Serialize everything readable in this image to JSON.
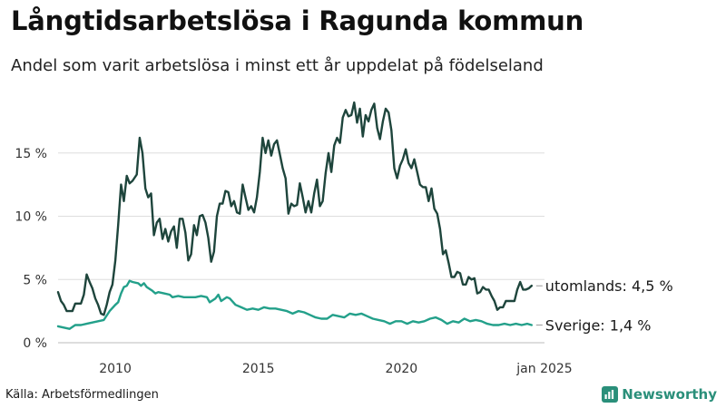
{
  "title": "Långtidsarbetslösa i Ragunda kommun",
  "subtitle": "Andel som varit arbetslösa i minst ett år uppdelat på födelseland",
  "source": "Källa: Arbetsförmedlingen",
  "logo_text": "Newsworthy",
  "colors": {
    "utomlands": "#1e453c",
    "sverige": "#23a08a",
    "grid": "#dddddd",
    "logo": "#2a8f7a"
  },
  "chart_data": {
    "type": "line",
    "title": "Långtidsarbetslösa i Ragunda kommun",
    "subtitle": "Andel som varit arbetslösa i minst ett år uppdelat på födelseland",
    "xlabel": "",
    "ylabel": "",
    "xlim": [
      2008.0,
      2025.0
    ],
    "ylim": [
      0,
      19.5
    ],
    "grid": true,
    "legend": "end-of-line labels",
    "x_ticks": [
      {
        "x": 2010,
        "label": "2010"
      },
      {
        "x": 2015,
        "label": "2015"
      },
      {
        "x": 2020,
        "label": "2020"
      },
      {
        "x": 2025,
        "label": "jan 2025"
      }
    ],
    "y_ticks": [
      {
        "y": 0,
        "label": "0 %"
      },
      {
        "y": 5,
        "label": "5 %"
      },
      {
        "y": 10,
        "label": "10 %"
      },
      {
        "y": 15,
        "label": "15 %"
      }
    ],
    "series": [
      {
        "name": "utomlands",
        "end_label": "utomlands: 4,5 %",
        "color": "#1e453c",
        "points": [
          [
            2008.0,
            4.0
          ],
          [
            2008.1,
            3.3
          ],
          [
            2008.2,
            3.0
          ],
          [
            2008.3,
            2.5
          ],
          [
            2008.5,
            2.5
          ],
          [
            2008.6,
            3.1
          ],
          [
            2008.8,
            3.1
          ],
          [
            2008.9,
            3.8
          ],
          [
            2009.0,
            5.4
          ],
          [
            2009.1,
            4.8
          ],
          [
            2009.2,
            4.3
          ],
          [
            2009.3,
            3.5
          ],
          [
            2009.4,
            3.0
          ],
          [
            2009.5,
            2.3
          ],
          [
            2009.6,
            2.2
          ],
          [
            2009.7,
            3.0
          ],
          [
            2009.8,
            4.0
          ],
          [
            2009.9,
            4.6
          ],
          [
            2010.0,
            6.5
          ],
          [
            2010.1,
            9.3
          ],
          [
            2010.2,
            12.5
          ],
          [
            2010.3,
            11.2
          ],
          [
            2010.4,
            13.2
          ],
          [
            2010.5,
            12.6
          ],
          [
            2010.6,
            12.8
          ],
          [
            2010.75,
            13.3
          ],
          [
            2010.85,
            16.2
          ],
          [
            2010.95,
            15.0
          ],
          [
            2011.05,
            12.2
          ],
          [
            2011.15,
            11.5
          ],
          [
            2011.25,
            11.8
          ],
          [
            2011.35,
            8.5
          ],
          [
            2011.45,
            9.5
          ],
          [
            2011.55,
            9.8
          ],
          [
            2011.65,
            8.2
          ],
          [
            2011.75,
            9.0
          ],
          [
            2011.85,
            8.0
          ],
          [
            2011.95,
            8.8
          ],
          [
            2012.05,
            9.2
          ],
          [
            2012.15,
            7.5
          ],
          [
            2012.25,
            9.8
          ],
          [
            2012.35,
            9.8
          ],
          [
            2012.45,
            8.7
          ],
          [
            2012.55,
            6.5
          ],
          [
            2012.65,
            7.0
          ],
          [
            2012.75,
            9.3
          ],
          [
            2012.85,
            8.5
          ],
          [
            2012.95,
            10.0
          ],
          [
            2013.05,
            10.1
          ],
          [
            2013.15,
            9.5
          ],
          [
            2013.25,
            8.3
          ],
          [
            2013.35,
            6.4
          ],
          [
            2013.45,
            7.2
          ],
          [
            2013.55,
            10.0
          ],
          [
            2013.65,
            11.0
          ],
          [
            2013.75,
            11.0
          ],
          [
            2013.85,
            12.0
          ],
          [
            2013.95,
            11.9
          ],
          [
            2014.05,
            10.8
          ],
          [
            2014.15,
            11.2
          ],
          [
            2014.25,
            10.3
          ],
          [
            2014.35,
            10.2
          ],
          [
            2014.45,
            12.5
          ],
          [
            2014.55,
            11.5
          ],
          [
            2014.65,
            10.5
          ],
          [
            2014.75,
            10.8
          ],
          [
            2014.85,
            10.3
          ],
          [
            2014.95,
            11.5
          ],
          [
            2015.05,
            13.5
          ],
          [
            2015.15,
            16.2
          ],
          [
            2015.25,
            15.0
          ],
          [
            2015.35,
            16.0
          ],
          [
            2015.45,
            14.8
          ],
          [
            2015.55,
            15.7
          ],
          [
            2015.65,
            16.0
          ],
          [
            2015.75,
            14.9
          ],
          [
            2015.85,
            13.8
          ],
          [
            2015.95,
            13.0
          ],
          [
            2016.05,
            10.2
          ],
          [
            2016.15,
            11.0
          ],
          [
            2016.25,
            10.8
          ],
          [
            2016.35,
            10.9
          ],
          [
            2016.45,
            12.6
          ],
          [
            2016.55,
            11.5
          ],
          [
            2016.65,
            10.3
          ],
          [
            2016.75,
            11.2
          ],
          [
            2016.85,
            10.3
          ],
          [
            2016.95,
            11.8
          ],
          [
            2017.05,
            12.9
          ],
          [
            2017.15,
            10.8
          ],
          [
            2017.25,
            11.2
          ],
          [
            2017.35,
            13.4
          ],
          [
            2017.45,
            15.0
          ],
          [
            2017.55,
            13.5
          ],
          [
            2017.65,
            15.6
          ],
          [
            2017.75,
            16.2
          ],
          [
            2017.85,
            15.8
          ],
          [
            2017.95,
            17.8
          ],
          [
            2018.05,
            18.4
          ],
          [
            2018.15,
            17.9
          ],
          [
            2018.25,
            18.0
          ],
          [
            2018.35,
            19.0
          ],
          [
            2018.45,
            17.4
          ],
          [
            2018.55,
            18.5
          ],
          [
            2018.65,
            16.3
          ],
          [
            2018.75,
            18.0
          ],
          [
            2018.85,
            17.5
          ],
          [
            2018.95,
            18.4
          ],
          [
            2019.05,
            18.9
          ],
          [
            2019.15,
            17.0
          ],
          [
            2019.25,
            16.1
          ],
          [
            2019.35,
            17.5
          ],
          [
            2019.45,
            18.5
          ],
          [
            2019.55,
            18.2
          ],
          [
            2019.65,
            16.8
          ],
          [
            2019.75,
            13.8
          ],
          [
            2019.85,
            13.0
          ],
          [
            2019.95,
            14.0
          ],
          [
            2020.05,
            14.5
          ],
          [
            2020.15,
            15.3
          ],
          [
            2020.25,
            14.2
          ],
          [
            2020.35,
            13.8
          ],
          [
            2020.45,
            14.5
          ],
          [
            2020.55,
            13.5
          ],
          [
            2020.65,
            12.5
          ],
          [
            2020.75,
            12.3
          ],
          [
            2020.85,
            12.3
          ],
          [
            2020.95,
            11.2
          ],
          [
            2021.05,
            12.2
          ],
          [
            2021.15,
            10.6
          ],
          [
            2021.25,
            10.2
          ],
          [
            2021.35,
            9.0
          ],
          [
            2021.45,
            7.0
          ],
          [
            2021.55,
            7.3
          ],
          [
            2021.65,
            6.3
          ],
          [
            2021.75,
            5.2
          ],
          [
            2021.85,
            5.2
          ],
          [
            2021.95,
            5.6
          ],
          [
            2022.05,
            5.5
          ],
          [
            2022.15,
            4.6
          ],
          [
            2022.25,
            4.6
          ],
          [
            2022.35,
            5.2
          ],
          [
            2022.45,
            5.0
          ],
          [
            2022.55,
            5.1
          ],
          [
            2022.65,
            3.9
          ],
          [
            2022.75,
            4.0
          ],
          [
            2022.85,
            4.4
          ],
          [
            2022.95,
            4.2
          ],
          [
            2023.05,
            4.2
          ],
          [
            2023.15,
            3.7
          ],
          [
            2023.25,
            3.3
          ],
          [
            2023.35,
            2.6
          ],
          [
            2023.45,
            2.8
          ],
          [
            2023.55,
            2.8
          ],
          [
            2023.65,
            3.3
          ],
          [
            2023.75,
            3.3
          ],
          [
            2023.85,
            3.3
          ],
          [
            2023.95,
            3.3
          ],
          [
            2024.05,
            4.2
          ],
          [
            2024.15,
            4.8
          ],
          [
            2024.25,
            4.2
          ],
          [
            2024.35,
            4.2
          ],
          [
            2024.45,
            4.3
          ],
          [
            2024.55,
            4.5
          ]
        ]
      },
      {
        "name": "Sverige",
        "end_label": "Sverige: 1,4 %",
        "color": "#23a08a",
        "points": [
          [
            2008.0,
            1.3
          ],
          [
            2008.2,
            1.2
          ],
          [
            2008.4,
            1.1
          ],
          [
            2008.6,
            1.4
          ],
          [
            2008.8,
            1.4
          ],
          [
            2009.0,
            1.5
          ],
          [
            2009.2,
            1.6
          ],
          [
            2009.4,
            1.7
          ],
          [
            2009.6,
            1.8
          ],
          [
            2009.8,
            2.5
          ],
          [
            2010.0,
            3.0
          ],
          [
            2010.1,
            3.2
          ],
          [
            2010.2,
            3.9
          ],
          [
            2010.3,
            4.4
          ],
          [
            2010.4,
            4.5
          ],
          [
            2010.5,
            4.9
          ],
          [
            2010.6,
            4.8
          ],
          [
            2010.8,
            4.7
          ],
          [
            2010.9,
            4.5
          ],
          [
            2011.0,
            4.7
          ],
          [
            2011.1,
            4.4
          ],
          [
            2011.3,
            4.1
          ],
          [
            2011.4,
            3.9
          ],
          [
            2011.5,
            4.0
          ],
          [
            2011.7,
            3.9
          ],
          [
            2011.9,
            3.8
          ],
          [
            2012.0,
            3.6
          ],
          [
            2012.2,
            3.7
          ],
          [
            2012.4,
            3.6
          ],
          [
            2012.6,
            3.6
          ],
          [
            2012.8,
            3.6
          ],
          [
            2013.0,
            3.7
          ],
          [
            2013.2,
            3.6
          ],
          [
            2013.3,
            3.2
          ],
          [
            2013.5,
            3.5
          ],
          [
            2013.6,
            3.8
          ],
          [
            2013.7,
            3.3
          ],
          [
            2013.9,
            3.6
          ],
          [
            2014.0,
            3.5
          ],
          [
            2014.2,
            3.0
          ],
          [
            2014.4,
            2.8
          ],
          [
            2014.6,
            2.6
          ],
          [
            2014.8,
            2.7
          ],
          [
            2015.0,
            2.6
          ],
          [
            2015.2,
            2.8
          ],
          [
            2015.4,
            2.7
          ],
          [
            2015.6,
            2.7
          ],
          [
            2015.8,
            2.6
          ],
          [
            2016.0,
            2.5
          ],
          [
            2016.2,
            2.3
          ],
          [
            2016.4,
            2.5
          ],
          [
            2016.6,
            2.4
          ],
          [
            2016.8,
            2.2
          ],
          [
            2017.0,
            2.0
          ],
          [
            2017.2,
            1.9
          ],
          [
            2017.4,
            1.9
          ],
          [
            2017.6,
            2.2
          ],
          [
            2017.8,
            2.1
          ],
          [
            2018.0,
            2.0
          ],
          [
            2018.2,
            2.3
          ],
          [
            2018.4,
            2.2
          ],
          [
            2018.6,
            2.3
          ],
          [
            2018.8,
            2.1
          ],
          [
            2019.0,
            1.9
          ],
          [
            2019.2,
            1.8
          ],
          [
            2019.4,
            1.7
          ],
          [
            2019.6,
            1.5
          ],
          [
            2019.8,
            1.7
          ],
          [
            2020.0,
            1.7
          ],
          [
            2020.2,
            1.5
          ],
          [
            2020.4,
            1.7
          ],
          [
            2020.6,
            1.6
          ],
          [
            2020.8,
            1.7
          ],
          [
            2021.0,
            1.9
          ],
          [
            2021.2,
            2.0
          ],
          [
            2021.4,
            1.8
          ],
          [
            2021.6,
            1.5
          ],
          [
            2021.8,
            1.7
          ],
          [
            2022.0,
            1.6
          ],
          [
            2022.2,
            1.9
          ],
          [
            2022.4,
            1.7
          ],
          [
            2022.6,
            1.8
          ],
          [
            2022.8,
            1.7
          ],
          [
            2023.0,
            1.5
          ],
          [
            2023.2,
            1.4
          ],
          [
            2023.4,
            1.4
          ],
          [
            2023.6,
            1.5
          ],
          [
            2023.8,
            1.4
          ],
          [
            2024.0,
            1.5
          ],
          [
            2024.2,
            1.4
          ],
          [
            2024.4,
            1.5
          ],
          [
            2024.55,
            1.4
          ]
        ]
      }
    ]
  }
}
